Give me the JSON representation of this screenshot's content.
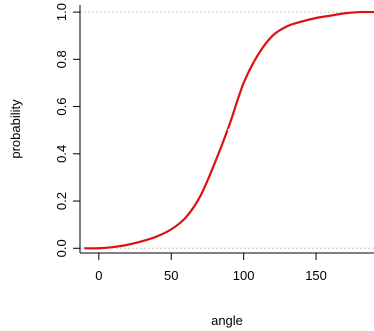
{
  "chart_data": {
    "type": "line",
    "title": "",
    "xlabel": "angle",
    "ylabel": "probability",
    "xlim": [
      -13,
      190
    ],
    "ylim": [
      -0.02,
      1.03
    ],
    "x_ticks": [
      0,
      50,
      100,
      150
    ],
    "y_ticks": [
      0.0,
      0.2,
      0.4,
      0.6,
      0.8,
      1.0
    ],
    "y_tick_labels": [
      "0.0",
      "0.2",
      "0.4",
      "0.6",
      "0.8",
      "1.0"
    ],
    "reference_lines_y": [
      0,
      1
    ],
    "grid": false,
    "series": [
      {
        "color": "#dd1111",
        "x": [
          -10,
          0,
          10,
          20,
          30,
          40,
          50,
          60,
          70,
          80,
          90,
          100,
          110,
          120,
          130,
          140,
          150,
          160,
          170,
          180,
          190
        ],
        "y": [
          0.0,
          0.0,
          0.005,
          0.015,
          0.03,
          0.05,
          0.08,
          0.13,
          0.22,
          0.36,
          0.52,
          0.7,
          0.82,
          0.9,
          0.94,
          0.96,
          0.975,
          0.985,
          0.995,
          1.0,
          1.0
        ]
      }
    ],
    "marker": {
      "x": 90,
      "y": 0.5
    }
  }
}
